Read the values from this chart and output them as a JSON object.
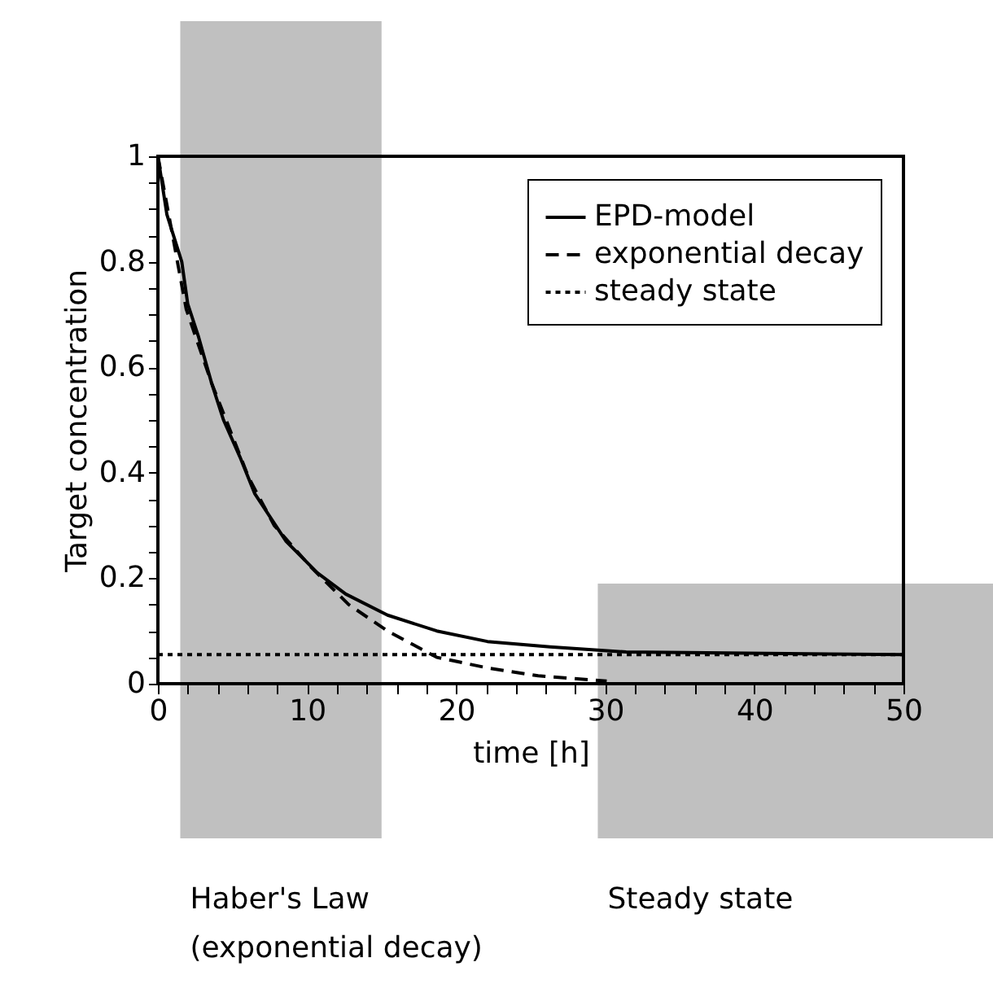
{
  "chart_data": {
    "type": "line",
    "xlabel": "time [h]",
    "ylabel": "Target concentration",
    "xlim": [
      0,
      50
    ],
    "ylim": [
      0,
      1
    ],
    "xticks": [
      0,
      {
        "value": 2,
        "label": null
      },
      {
        "value": 4,
        "label": null
      },
      {
        "value": 6,
        "label": null
      },
      {
        "value": 8,
        "label": null
      },
      10,
      {
        "value": 12,
        "label": null
      },
      {
        "value": 14,
        "label": null
      },
      {
        "value": 16,
        "label": null
      },
      {
        "value": 18,
        "label": null
      },
      20,
      {
        "value": 22,
        "label": null
      },
      {
        "value": 24,
        "label": null
      },
      {
        "value": 26,
        "label": null
      },
      {
        "value": 28,
        "label": null
      },
      30,
      {
        "value": 32,
        "label": null
      },
      {
        "value": 34,
        "label": null
      },
      {
        "value": 36,
        "label": null
      },
      {
        "value": 38,
        "label": null
      },
      40,
      {
        "value": 42,
        "label": null
      },
      {
        "value": 44,
        "label": null
      },
      {
        "value": 46,
        "label": null
      },
      {
        "value": 48,
        "label": null
      },
      50
    ],
    "yticks": [
      0,
      {
        "value": 0.05,
        "label": null
      },
      {
        "value": 0.1,
        "label": null
      },
      {
        "value": 0.15,
        "label": null
      },
      0.2,
      {
        "value": 0.25,
        "label": null
      },
      {
        "value": 0.3,
        "label": null
      },
      {
        "value": 0.35,
        "label": null
      },
      0.4,
      {
        "value": 0.45,
        "label": null
      },
      {
        "value": 0.5,
        "label": null
      },
      {
        "value": 0.55,
        "label": null
      },
      0.6,
      {
        "value": 0.65,
        "label": null
      },
      {
        "value": 0.7,
        "label": null
      },
      {
        "value": 0.75,
        "label": null
      },
      0.8,
      {
        "value": 0.85,
        "label": null
      },
      {
        "value": 0.9,
        "label": null
      },
      {
        "value": 0.95,
        "label": null
      },
      1
    ],
    "grid": false,
    "legend": "top right",
    "series": [
      {
        "name": "EPD-model",
        "color": "#000000",
        "line_style": "solid",
        "x": [
          0,
          0.6,
          1.6,
          2.0,
          2.7,
          3.6,
          4.4,
          5.5,
          6.5,
          8.6,
          10.7,
          12.6,
          15.4,
          18.7,
          22.1,
          26.3,
          31.4,
          50
        ],
        "values": [
          1.0,
          0.89,
          0.8,
          0.72,
          0.66,
          0.57,
          0.5,
          0.43,
          0.36,
          0.27,
          0.21,
          0.17,
          0.13,
          0.1,
          0.08,
          0.07,
          0.06,
          0.055
        ]
      },
      {
        "name": "exponential decay",
        "color": "#000000",
        "line_style": "dashed",
        "x": [
          0,
          1.9,
          3.6,
          6.1,
          7.8,
          10.3,
          12.8,
          15.4,
          18.7,
          22.1,
          25.5,
          30.1
        ],
        "values": [
          1.0,
          0.71,
          0.57,
          0.39,
          0.3,
          0.22,
          0.15,
          0.1,
          0.05,
          0.03,
          0.015,
          0.005
        ]
      },
      {
        "name": "steady state",
        "color": "#000000",
        "line_style": "dotted",
        "x": [
          0,
          50
        ],
        "values": [
          0.055,
          0.055
        ]
      }
    ],
    "bands": [
      {
        "axis": "x",
        "from": 1.5,
        "to": 15,
        "label": "Haber's Law\n(exponential decay)",
        "color": "#c0c0c0"
      },
      {
        "axis": "x",
        "from": 29.5,
        "to": 50,
        "label": "Steady state",
        "color": "#c0c0c0"
      }
    ]
  }
}
